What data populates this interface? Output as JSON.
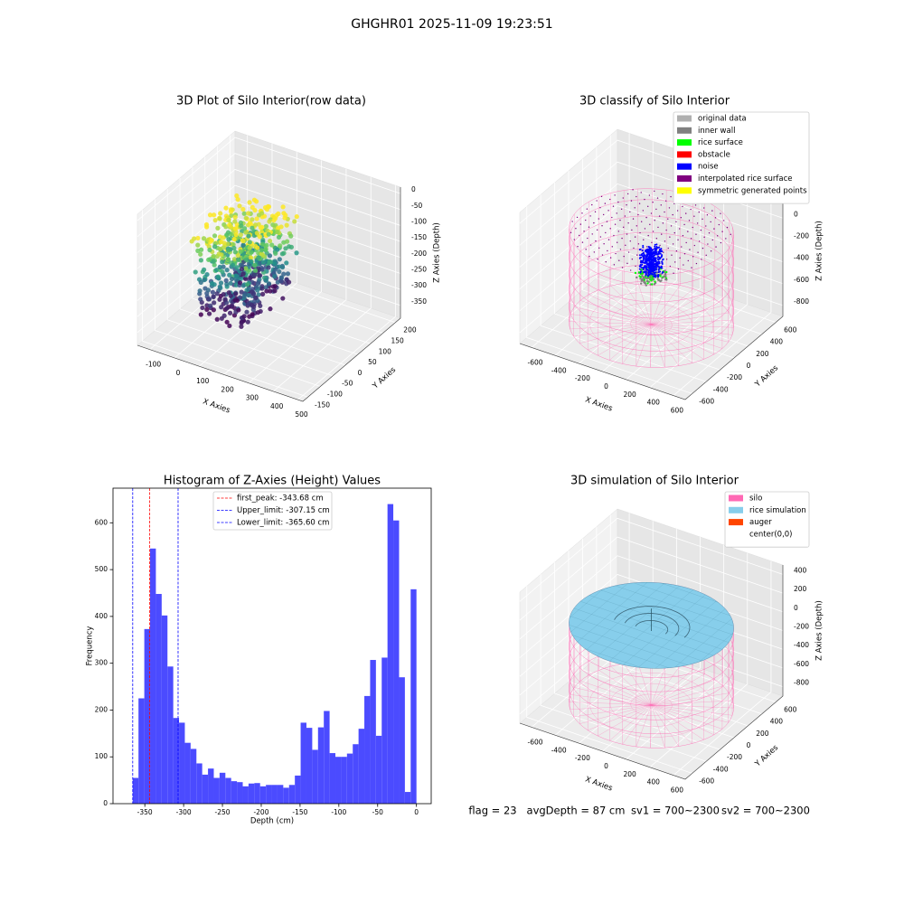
{
  "title": "GHGHR01 2025-11-09 19:23:51",
  "chart_data": [
    {
      "type": "scatter3d",
      "title": "3D Plot of Silo Interior(row data)",
      "xlabel": "X Axies",
      "ylabel": "Y Axies",
      "zlabel": "Z Axies (Depth)",
      "xlim": [
        -150,
        520
      ],
      "ylim": [
        -170,
        220
      ],
      "zlim": [
        -390,
        20
      ],
      "xticks": [
        -100,
        0,
        100,
        200,
        300,
        400,
        500
      ],
      "yticks": [
        -150,
        -100,
        -50,
        0,
        50,
        100,
        150,
        200
      ],
      "zticks": [
        0,
        -50,
        -100,
        -150,
        -200,
        -250,
        -300,
        -350
      ]
    },
    {
      "type": "classify3d",
      "title": "3D classify of Silo Interior",
      "xlabel": "X Axies",
      "ylabel": "Y Axies",
      "zlabel": "Z Axies (Depth)",
      "xlim": [
        -700,
        700
      ],
      "ylim": [
        -700,
        700
      ],
      "zlim": [
        -900,
        300
      ],
      "xticks": [
        -600,
        -400,
        -200,
        0,
        200,
        400,
        600
      ],
      "yticks": [
        -600,
        -400,
        -200,
        0,
        200,
        400,
        600
      ],
      "zticks": [
        200,
        0,
        -200,
        -400,
        -600,
        -800
      ],
      "legend": "upper right",
      "series": [
        {
          "name": "original data",
          "color": "#b0b0b0"
        },
        {
          "name": "inner wall",
          "color": "#808080"
        },
        {
          "name": "rice surface",
          "color": "#00ff00"
        },
        {
          "name": "obstacle",
          "color": "#ff0000"
        },
        {
          "name": "noise",
          "color": "#0000ff"
        },
        {
          "name": "interpolated rice surface",
          "color": "#800080"
        },
        {
          "name": "symmetric generated points",
          "color": "#ffff00"
        }
      ]
    },
    {
      "type": "histogram",
      "title": "Histogram of Z-Axies (Height) Values",
      "xlabel": "Depth (cm)",
      "ylabel": "Frequency",
      "color": "#4b4bff",
      "bins": [
        -365.6,
        -358.14,
        -350.68,
        -343.22,
        -335.76,
        -328.29,
        -320.83,
        -313.37,
        -305.91,
        -298.45,
        -290.99,
        -283.53,
        -276.07,
        -268.6,
        -261.14,
        -253.68,
        -246.22,
        -238.76,
        -231.3,
        -223.84,
        -216.38,
        -208.91,
        -201.45,
        -193.99,
        -186.53,
        -179.07,
        -171.61,
        -164.15,
        -156.69,
        -149.23,
        -141.76,
        -134.3,
        -126.84,
        -119.38,
        -111.92,
        -104.46,
        -97.0,
        -89.54,
        -82.07,
        -74.61,
        -67.15,
        -59.69,
        -52.23,
        -44.77,
        -37.31,
        -29.85,
        -22.38,
        -14.92,
        -7.46,
        0
      ],
      "counts": [
        55,
        225,
        373,
        545,
        448,
        402,
        293,
        183,
        173,
        130,
        117,
        86,
        62,
        75,
        55,
        66,
        55,
        48,
        46,
        37,
        43,
        44,
        37,
        40,
        40,
        40,
        34,
        40,
        60,
        173,
        162,
        115,
        163,
        198,
        108,
        100,
        100,
        107,
        127,
        160,
        230,
        307,
        145,
        312,
        640,
        605,
        270,
        25,
        458
      ],
      "xlim": [
        -391,
        19
      ],
      "ylim": [
        0,
        674
      ],
      "xticks": [
        -350,
        -300,
        -250,
        -200,
        -150,
        -100,
        -50,
        0
      ],
      "yticks": [
        0,
        100,
        200,
        300,
        400,
        500,
        600
      ],
      "legend": "upper center",
      "vlines": [
        {
          "label": "first_peak: -343.68 cm",
          "value": -343.68,
          "color": "#ff0000"
        },
        {
          "label": "Upper_limit: -307.15 cm",
          "value": -307.15,
          "color": "#0000ff"
        },
        {
          "label": "Lower_limit: -365.60 cm",
          "value": -365.6,
          "color": "#0000ff"
        }
      ]
    },
    {
      "type": "simulation3d",
      "title": "3D simulation of Silo Interior",
      "xlabel": "X Axies",
      "ylabel": "Y Axies",
      "zlabel": "Z Axies (Depth)",
      "xlim": [
        -700,
        700
      ],
      "ylim": [
        -700,
        700
      ],
      "zlim": [
        -900,
        500
      ],
      "xticks": [
        -600,
        -400,
        -200,
        0,
        200,
        400,
        600
      ],
      "yticks": [
        -600,
        -400,
        -200,
        0,
        200,
        400,
        600
      ],
      "zticks": [
        400,
        200,
        0,
        -200,
        -400,
        -600,
        -800
      ],
      "legend": "upper right",
      "series": [
        {
          "name": "silo",
          "color": "#ff69b4"
        },
        {
          "name": "rice simulation",
          "color": "#87ceeb"
        },
        {
          "name": "auger",
          "color": "#ff4500"
        },
        {
          "name": "center(0,0)",
          "color": "#ffffff"
        }
      ]
    }
  ],
  "footer": [
    "flag = 23",
    "avgDepth = 87 cm",
    "sv1 = 700~2300",
    "sv2 = 700~2300"
  ]
}
